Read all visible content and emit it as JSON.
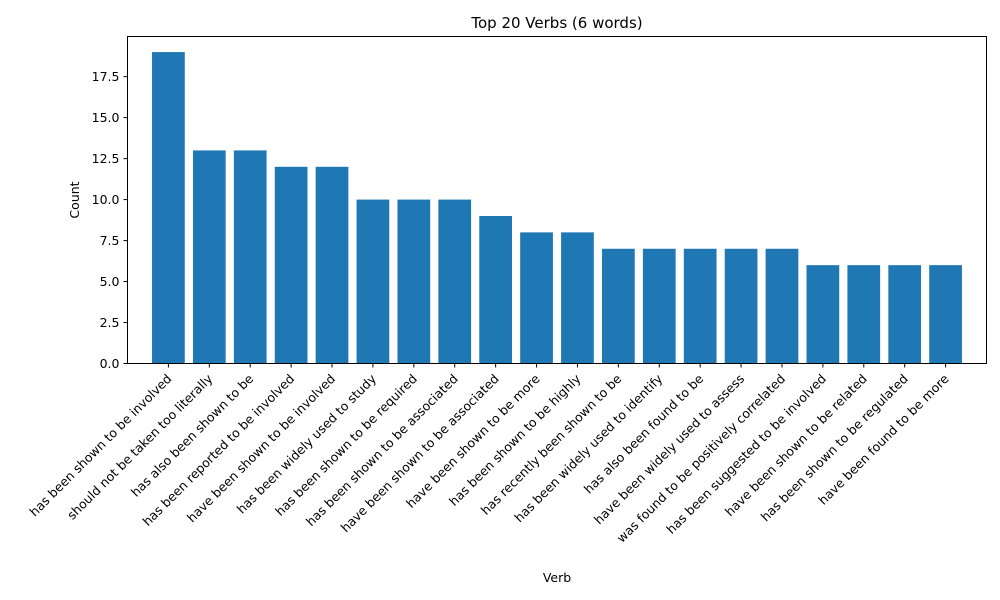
{
  "chart_data": {
    "type": "bar",
    "title": "Top 20 Verbs (6 words)",
    "xlabel": "Verb",
    "ylabel": "Count",
    "categories": [
      "has been shown to be involved",
      "should not be taken too literally",
      "has also been shown to be",
      "has been reported to be involved",
      "have been shown to be involved",
      "has been widely used to study",
      "has been shown to be required",
      "has been shown to be associated",
      "have been shown to be associated",
      "have been shown to be more",
      "has been shown to be highly",
      "has recently been shown to be",
      "has been widely used to identify",
      "has also been found to be",
      "have been widely used to assess",
      "was found to be positively correlated",
      "has been suggested to be involved",
      "have been shown to be related",
      "has been shown to be regulated",
      "have been found to be more"
    ],
    "values": [
      19,
      13,
      13,
      12,
      12,
      10,
      10,
      10,
      9,
      8,
      8,
      7,
      7,
      7,
      7,
      7,
      6,
      6,
      6,
      6
    ],
    "ylim": [
      0,
      19.95
    ],
    "yticks": [
      0.0,
      2.5,
      5.0,
      7.5,
      10.0,
      12.5,
      15.0,
      17.5
    ],
    "ytick_labels": [
      "0.0",
      "2.5",
      "5.0",
      "7.5",
      "10.0",
      "12.5",
      "15.0",
      "17.5"
    ],
    "bar_color": "#1f77b4",
    "grid": false,
    "legend": "none"
  }
}
